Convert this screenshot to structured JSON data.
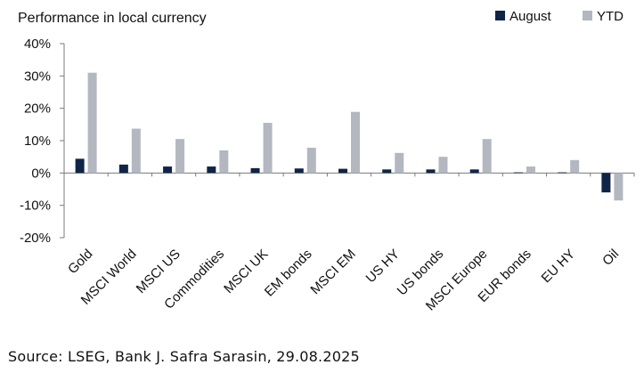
{
  "chart_data": {
    "type": "bar",
    "title": "Performance in local currency",
    "xlabel": "",
    "ylabel": "",
    "categories": [
      "Gold",
      "MSCI World",
      "MSCI US",
      "Commodities",
      "MSCI UK",
      "EM bonds",
      "MSCI EM",
      "US HY",
      "US bonds",
      "MSCI Europe",
      "EUR bonds",
      "EU HY",
      "Oil"
    ],
    "series": [
      {
        "name": "August",
        "color": "#0f2447",
        "values": [
          4.4,
          2.6,
          2.0,
          2.0,
          1.5,
          1.4,
          1.3,
          1.1,
          1.1,
          1.1,
          0.2,
          0.2,
          -6.0
        ]
      },
      {
        "name": "YTD",
        "color": "#b3b7c0",
        "values": [
          31.0,
          13.7,
          10.5,
          7.0,
          15.5,
          7.8,
          18.9,
          6.2,
          5.0,
          10.5,
          2.0,
          4.0,
          -8.5
        ]
      }
    ],
    "ylim": [
      -20,
      40
    ],
    "yticks": [
      -20,
      -10,
      0,
      10,
      20,
      30,
      40
    ],
    "tick_suffix": "%",
    "grid": false,
    "legend_position": "top-right"
  },
  "source": "Source: LSEG, Bank J. Safra Sarasin, 29.08.2025"
}
